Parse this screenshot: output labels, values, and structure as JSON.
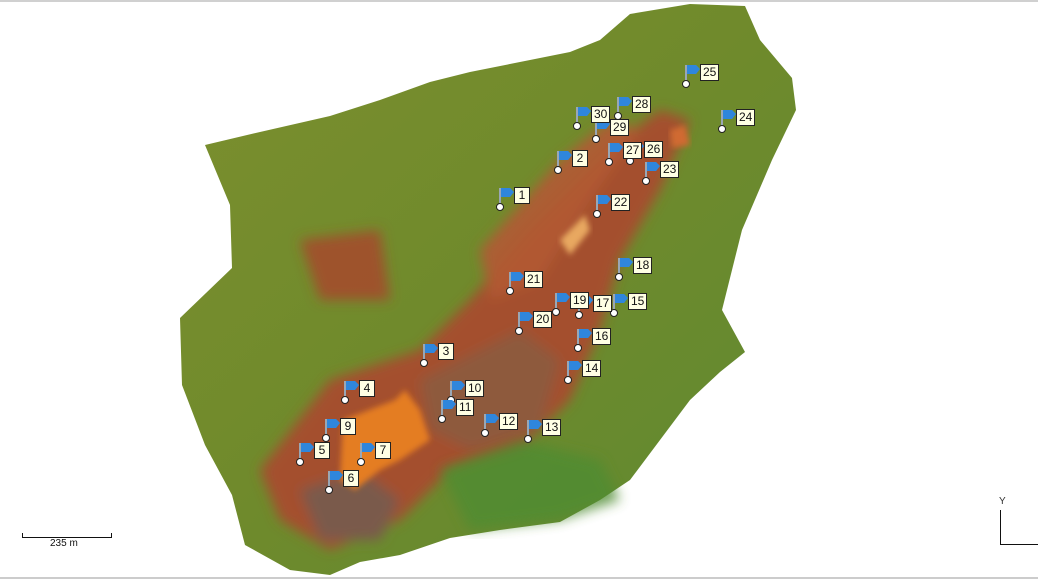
{
  "map": {
    "markers": [
      {
        "label": "1"
      },
      {
        "label": "2"
      },
      {
        "label": "3"
      },
      {
        "label": "4"
      },
      {
        "label": "5"
      },
      {
        "label": "6"
      },
      {
        "label": "7"
      },
      {
        "label": "9"
      },
      {
        "label": "10"
      },
      {
        "label": "11"
      },
      {
        "label": "12"
      },
      {
        "label": "13"
      },
      {
        "label": "14"
      },
      {
        "label": "15"
      },
      {
        "label": "16"
      },
      {
        "label": "17"
      },
      {
        "label": "18"
      },
      {
        "label": "19"
      },
      {
        "label": "20"
      },
      {
        "label": "21"
      },
      {
        "label": "22"
      },
      {
        "label": "23"
      },
      {
        "label": "24"
      },
      {
        "label": "25"
      },
      {
        "label": "26"
      },
      {
        "label": "27"
      },
      {
        "label": "28"
      },
      {
        "label": "29"
      },
      {
        "label": "30"
      }
    ],
    "marker_icon": "flag-icon",
    "flag_color": "#2f86dc"
  },
  "scale_bar": {
    "label": "235 m"
  },
  "axis": {
    "y_label": "Y"
  }
}
